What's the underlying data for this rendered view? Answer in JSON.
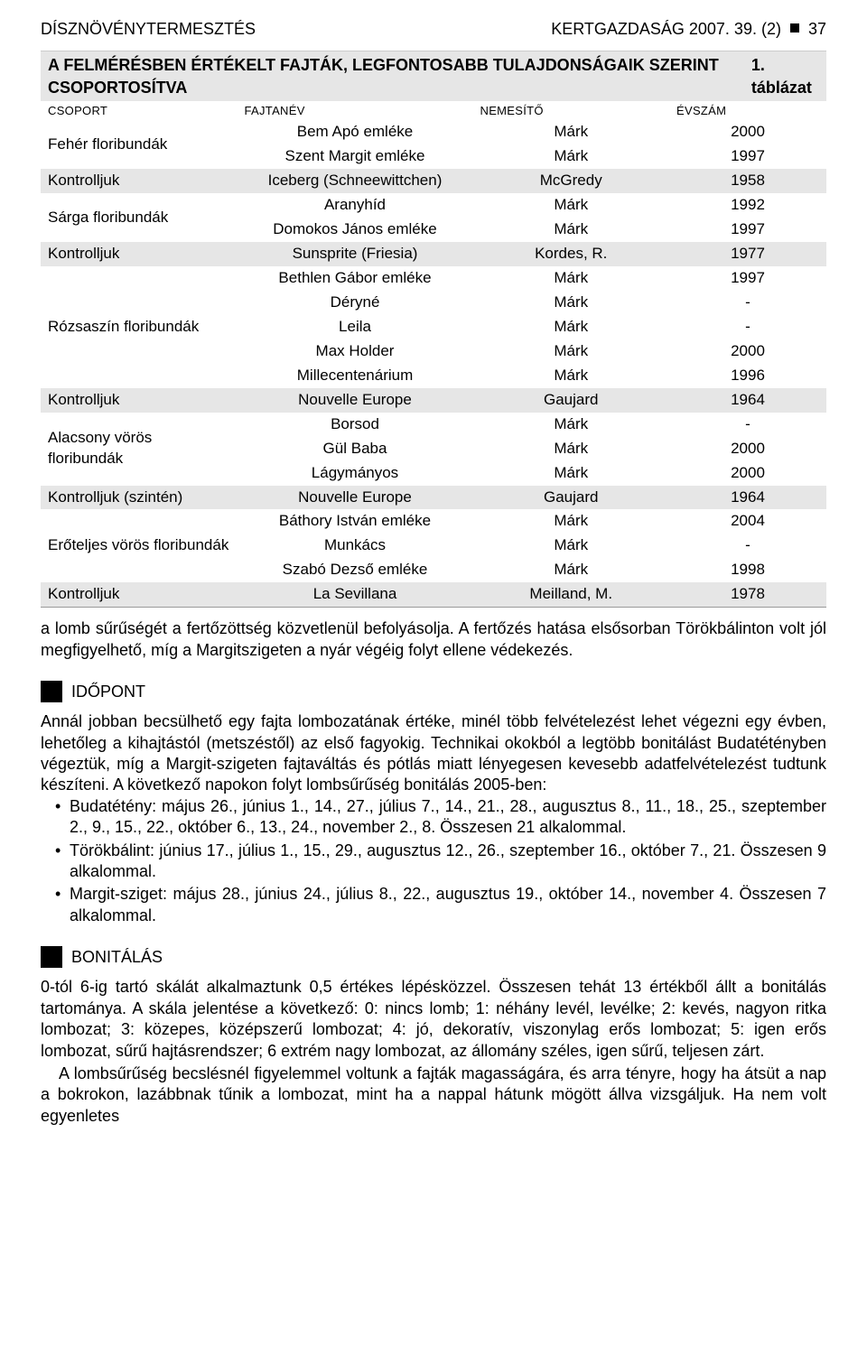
{
  "header": {
    "left": "DÍSZNÖVÉNYTERMESZTÉS",
    "right": "KERTGAZDASÁG 2007. 39. (2)",
    "page": "37"
  },
  "table": {
    "title": "A FELMÉRÉSBEN ÉRTÉKELT FAJTÁK, LEGFONTOSABB TULAJDONSÁGAIK SZERINT CSOPORTOSÍTVA",
    "title_right": "1. táblázat",
    "columns": [
      "CSOPORT",
      "FAJTANÉV",
      "NEMESÍTŐ",
      "ÉVSZÁM"
    ],
    "shaded_color": "#e6e6e6",
    "rows": [
      {
        "group": "Fehér floribundák",
        "name": "Bem Apó emléke",
        "breeder": "Márk",
        "year": "2000",
        "shaded": false,
        "rowspan": 2
      },
      {
        "group": "",
        "name": "Szent Margit emléke",
        "breeder": "Márk",
        "year": "1997",
        "shaded": false,
        "rowspan": 0
      },
      {
        "group": "Kontrolljuk",
        "name": "Iceberg (Schneewittchen)",
        "breeder": "McGredy",
        "year": "1958",
        "shaded": true,
        "rowspan": 1
      },
      {
        "group": "Sárga floribundák",
        "name": "Aranyhíd",
        "breeder": "Márk",
        "year": "1992",
        "shaded": false,
        "rowspan": 2
      },
      {
        "group": "",
        "name": "Domokos János emléke",
        "breeder": "Márk",
        "year": "1997",
        "shaded": false,
        "rowspan": 0
      },
      {
        "group": "Kontrolljuk",
        "name": "Sunsprite (Friesia)",
        "breeder": "Kordes, R.",
        "year": "1977",
        "shaded": true,
        "rowspan": 1
      },
      {
        "group": "Rózsaszín floribundák",
        "name": "Bethlen Gábor emléke",
        "breeder": "Márk",
        "year": "1997",
        "shaded": false,
        "rowspan": 5
      },
      {
        "group": "",
        "name": "Déryné",
        "breeder": "Márk",
        "year": "-",
        "shaded": false,
        "rowspan": 0
      },
      {
        "group": "",
        "name": "Leila",
        "breeder": "Márk",
        "year": "-",
        "shaded": false,
        "rowspan": 0
      },
      {
        "group": "",
        "name": "Max Holder",
        "breeder": "Márk",
        "year": "2000",
        "shaded": false,
        "rowspan": 0
      },
      {
        "group": "",
        "name": "Millecentenárium",
        "breeder": "Márk",
        "year": "1996",
        "shaded": false,
        "rowspan": 0
      },
      {
        "group": "Kontrolljuk",
        "name": "Nouvelle Europe",
        "breeder": "Gaujard",
        "year": "1964",
        "shaded": true,
        "rowspan": 1
      },
      {
        "group": "Alacsony vörös floribundák",
        "name": "Borsod",
        "breeder": "Márk",
        "year": "-",
        "shaded": false,
        "rowspan": 3
      },
      {
        "group": "",
        "name": "Gül Baba",
        "breeder": "Márk",
        "year": "2000",
        "shaded": false,
        "rowspan": 0
      },
      {
        "group": "",
        "name": "Lágymányos",
        "breeder": "Márk",
        "year": "2000",
        "shaded": false,
        "rowspan": 0
      },
      {
        "group": "Kontrolljuk (szintén)",
        "name": "Nouvelle Europe",
        "breeder": "Gaujard",
        "year": "1964",
        "shaded": true,
        "rowspan": 1
      },
      {
        "group": "Erőteljes vörös floribundák",
        "name": "Báthory István emléke",
        "breeder": "Márk",
        "year": "2004",
        "shaded": false,
        "rowspan": 3
      },
      {
        "group": "",
        "name": "Munkács",
        "breeder": "Márk",
        "year": "-",
        "shaded": false,
        "rowspan": 0
      },
      {
        "group": "",
        "name": "Szabó Dezső emléke",
        "breeder": "Márk",
        "year": "1998",
        "shaded": false,
        "rowspan": 0
      },
      {
        "group": "Kontrolljuk",
        "name": "La Sevillana",
        "breeder": "Meilland, M.",
        "year": "1978",
        "shaded": true,
        "rowspan": 1
      }
    ]
  },
  "para_after_table": "a lomb sűrűségét a fertőzöttség közvetlenül befolyásolja. A fertőzés hatása elsősorban Törökbálinton volt jól megfigyelhető, míg a Margitszigeten a nyár végéig folyt ellene védekezés.",
  "section_idopont": {
    "title": "IDŐPONT",
    "para": "Annál jobban becsülhető egy fajta lombozatának értéke, minél több felvételezést lehet végezni egy évben, lehetőleg a kihajtástól (metszéstől) az első fagyokig. Technikai okokból a legtöbb bonitálást Budatétényben végeztük, míg a Margit-szigeten fajtaváltás és pótlás miatt lényegesen kevesebb adatfelvételezést tudtunk készíteni. A következő napokon folyt lombsűrűség bonitálás 2005-ben:",
    "bullets": [
      "Budatétény: május 26., június 1., 14., 27., július 7., 14., 21., 28., augusztus 8., 11., 18., 25., szeptember 2., 9., 15., 22., október 6., 13., 24., november 2., 8. Összesen 21 alkalommal.",
      "Törökbálint: június 17., július 1., 15., 29., augusztus 12., 26., szeptember 16., október 7., 21. Összesen 9 alkalommal.",
      "Margit-sziget: május 28., június 24., július 8., 22., augusztus 19., október 14., november 4. Összesen 7 alkalommal."
    ]
  },
  "section_bonitalas": {
    "title": "BONITÁLÁS",
    "para": "0-tól 6-ig tartó skálát alkalmaztunk 0,5 értékes lépésközzel. Összesen tehát 13 értékből állt a bonitálás tartománya. A skála jelentése a következő: 0: nincs lomb; 1: néhány levél, levélke; 2: kevés, nagyon ritka lombozat; 3: közepes, középszerű lombozat; 4: jó, dekoratív, viszonylag erős lombozat; 5: igen erős lombozat, sűrű hajtásrendszer; 6 extrém nagy lombozat, az állomány széles, igen sűrű, teljesen zárt.",
    "para2": "A lombsűrűség becslésnél figyelemmel voltunk a fajták magasságára, és arra tényre, hogy ha átsüt a nap a bokrokon, lazábbnak tűnik a lombozat, mint ha a nappal hátunk mögött állva vizsgáljuk. Ha nem volt egyenletes"
  }
}
